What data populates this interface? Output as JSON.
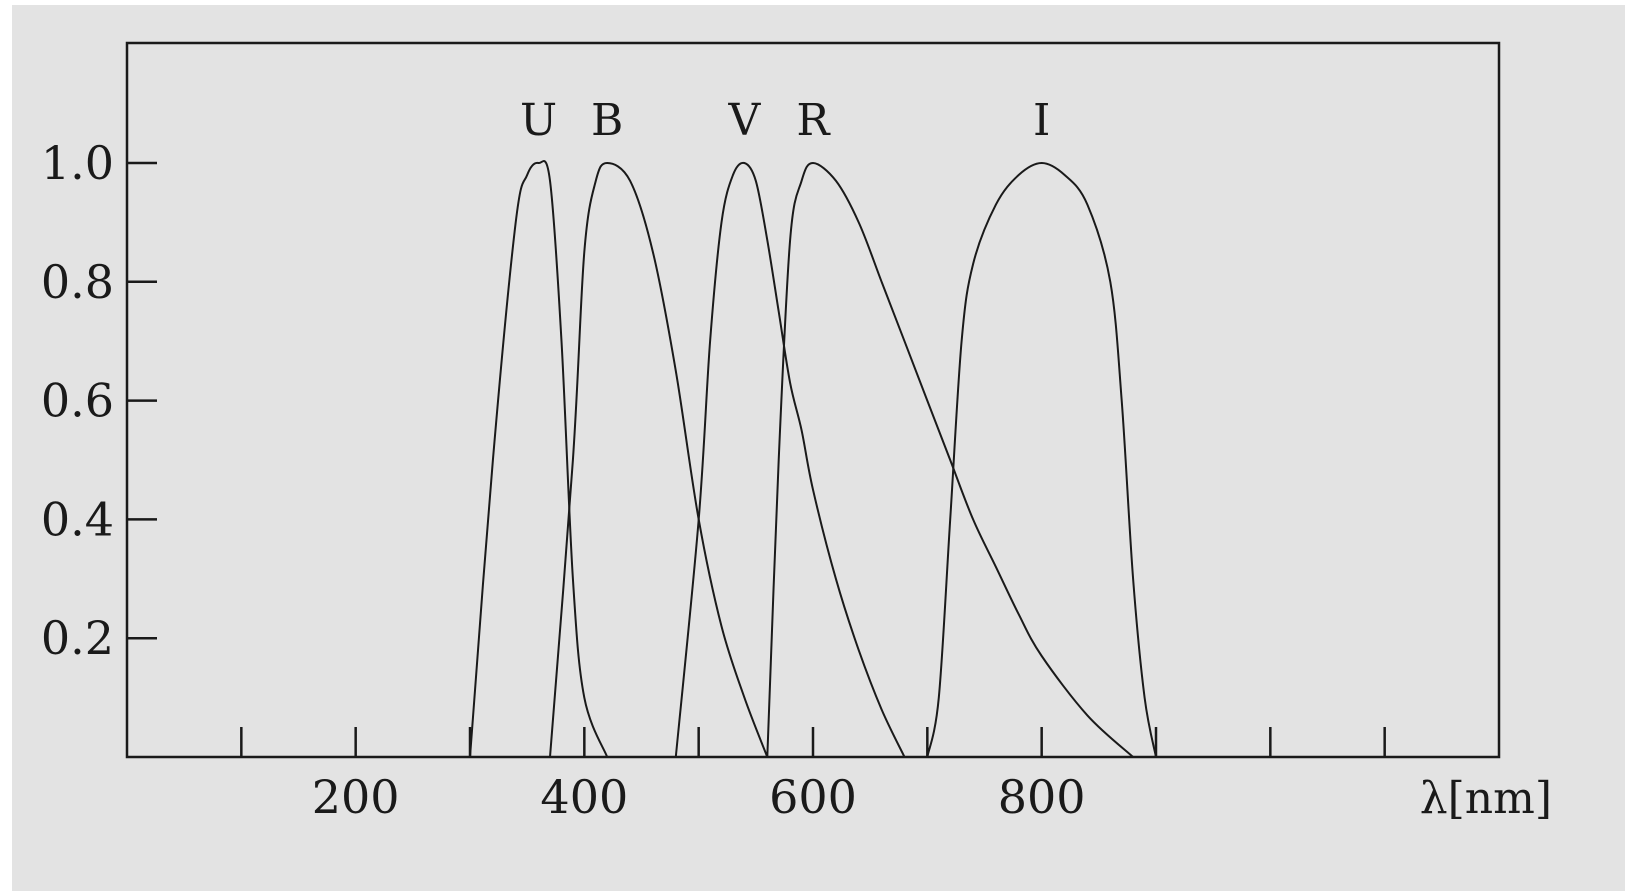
{
  "chart_data": {
    "type": "line",
    "title": "",
    "xlabel": "λ[nm]",
    "ylabel": "",
    "xlim": [
      0,
      1200
    ],
    "ylim": [
      0,
      1.0
    ],
    "x_ticks": [
      100,
      200,
      300,
      400,
      500,
      600,
      700,
      800,
      900,
      1000,
      1100
    ],
    "x_tick_labels": [
      "200",
      "400",
      "600",
      "800"
    ],
    "x_tick_label_values": [
      200,
      400,
      600,
      800
    ],
    "y_ticks": [
      0.2,
      0.4,
      0.6,
      0.8,
      1.0
    ],
    "y_tick_labels": [
      "0.2",
      "0.4",
      "0.6",
      "0.8",
      "1.0"
    ],
    "grid": false,
    "series": [
      {
        "name": "U",
        "peak": 360,
        "x": [
          300,
          320,
          340,
          350,
          360,
          370,
          380,
          390,
          400,
          420
        ],
        "y": [
          0.0,
          0.5,
          0.9,
          0.98,
          1.0,
          0.97,
          0.7,
          0.3,
          0.1,
          0.0
        ]
      },
      {
        "name": "B",
        "peak": 420,
        "x": [
          370,
          390,
          400,
          410,
          420,
          440,
          460,
          480,
          500,
          520,
          540,
          560
        ],
        "y": [
          0.0,
          0.5,
          0.85,
          0.97,
          1.0,
          0.97,
          0.85,
          0.65,
          0.4,
          0.22,
          0.1,
          0.0
        ]
      },
      {
        "name": "V",
        "peak": 540,
        "x": [
          480,
          500,
          510,
          520,
          530,
          540,
          550,
          560,
          570,
          580,
          590,
          600,
          620,
          640,
          660,
          680
        ],
        "y": [
          0.0,
          0.4,
          0.7,
          0.9,
          0.98,
          1.0,
          0.97,
          0.87,
          0.75,
          0.63,
          0.55,
          0.45,
          0.3,
          0.18,
          0.08,
          0.0
        ]
      },
      {
        "name": "R",
        "peak": 600,
        "x": [
          560,
          570,
          580,
          590,
          600,
          620,
          640,
          660,
          680,
          700,
          720,
          740,
          760,
          780,
          800,
          840,
          880
        ],
        "y": [
          0.0,
          0.5,
          0.87,
          0.97,
          1.0,
          0.97,
          0.9,
          0.8,
          0.7,
          0.6,
          0.5,
          0.4,
          0.32,
          0.24,
          0.17,
          0.07,
          0.0
        ]
      },
      {
        "name": "I",
        "peak": 800,
        "x": [
          700,
          710,
          720,
          730,
          740,
          760,
          780,
          800,
          820,
          840,
          860,
          870,
          880,
          890,
          900
        ],
        "y": [
          0.0,
          0.1,
          0.4,
          0.7,
          0.83,
          0.93,
          0.98,
          1.0,
          0.98,
          0.93,
          0.8,
          0.6,
          0.3,
          0.1,
          0.0
        ]
      }
    ]
  }
}
